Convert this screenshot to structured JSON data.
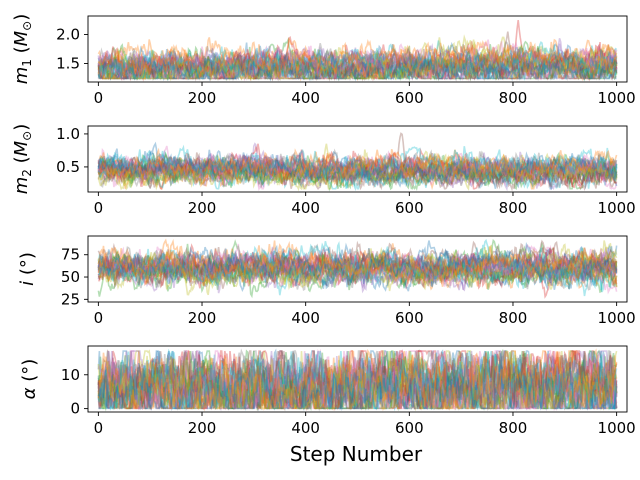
{
  "chart_data": {
    "type": "line",
    "shared_xlabel": "Step Number",
    "xlim": [
      -20,
      1020
    ],
    "panels": [
      {
        "id": "m1",
        "ylabel_main": "m",
        "ylabel_sub": "1",
        "ylabel_rest": " (M",
        "ylabel_sun": "⊙",
        "ylabel_close": ")",
        "ylim": [
          1.18,
          2.32
        ],
        "yticks": [
          1.5,
          2.0
        ],
        "ytick_labels": [
          "1.5",
          "2.0"
        ],
        "xticks": [
          0,
          200,
          400,
          600,
          800,
          1000
        ],
        "xtick_labels": [
          "0",
          "200",
          "400",
          "600",
          "800",
          "1000"
        ],
        "chains": {
          "n_walkers": 32,
          "center": 1.45,
          "spread": 0.14,
          "noise": 0.08,
          "clip": [
            1.24,
            1.95
          ],
          "spikes": [
            {
              "chain": 3,
              "step": 810,
              "value": 2.25
            },
            {
              "chain": 5,
              "step": 790,
              "value": 2.05
            },
            {
              "chain": 12,
              "step": 335,
              "value": 1.85
            }
          ]
        }
      },
      {
        "id": "m2",
        "ylabel_main": "m",
        "ylabel_sub": "2",
        "ylabel_rest": " (M",
        "ylabel_sun": "⊙",
        "ylabel_close": ")",
        "ylim": [
          0.12,
          1.12
        ],
        "yticks": [
          0.5,
          1.0
        ],
        "ytick_labels": [
          "0.5",
          "1.0"
        ],
        "xticks": [
          0,
          200,
          400,
          600,
          800,
          1000
        ],
        "xtick_labels": [
          "0",
          "200",
          "400",
          "600",
          "800",
          "1000"
        ],
        "chains": {
          "n_walkers": 32,
          "center": 0.45,
          "spread": 0.1,
          "noise": 0.06,
          "clip": [
            0.17,
            0.85
          ],
          "spikes": [
            {
              "chain": 5,
              "step": 585,
              "value": 1.05
            },
            {
              "chain": 8,
              "step": 440,
              "value": 0.85
            }
          ]
        }
      },
      {
        "id": "i",
        "ylabel_main": "i",
        "ylabel_sub": "",
        "ylabel_rest": " (",
        "ylabel_sun": "",
        "ylabel_close": "°)",
        "ylim": [
          22,
          96
        ],
        "yticks": [
          25,
          50,
          75
        ],
        "ytick_labels": [
          "25",
          "50",
          "75"
        ],
        "xticks": [
          0,
          200,
          400,
          600,
          800,
          1000
        ],
        "xtick_labels": [
          "0",
          "200",
          "400",
          "600",
          "800",
          "1000"
        ],
        "chains": {
          "n_walkers": 32,
          "center": 60,
          "spread": 9,
          "noise": 5,
          "clip": [
            28,
            91
          ],
          "spikes": [
            {
              "chain": 2,
              "step": 2,
              "value": 28
            }
          ]
        }
      },
      {
        "id": "alpha",
        "ylabel_main": "α",
        "ylabel_sub": "",
        "ylabel_rest": " (",
        "ylabel_sun": "",
        "ylabel_close": "°)",
        "ylim": [
          -1,
          18.5
        ],
        "yticks": [
          0,
          10
        ],
        "ytick_labels": [
          "0",
          "10"
        ],
        "xticks": [
          0,
          200,
          400,
          600,
          800,
          1000
        ],
        "xtick_labels": [
          "0",
          "200",
          "400",
          "600",
          "800",
          "1000"
        ],
        "chains": {
          "n_walkers": 32,
          "center": 6,
          "spread": 3,
          "noise": 3.2,
          "clip": [
            0.1,
            17
          ],
          "spikes": []
        }
      }
    ],
    "grid": false,
    "series_colors": [
      "#1f77b4",
      "#ff7f0e",
      "#2ca02c",
      "#d62728",
      "#9467bd",
      "#8c564b",
      "#e377c2",
      "#7f7f7f",
      "#bcbd22",
      "#17becf"
    ],
    "line_alpha": 0.35,
    "n_steps": 1000
  }
}
